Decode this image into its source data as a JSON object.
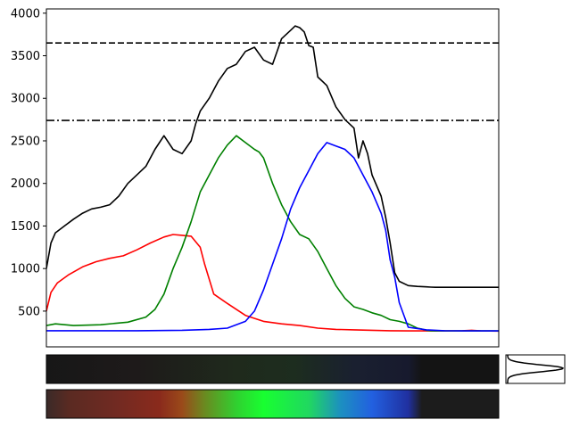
{
  "chart_data": {
    "type": "line",
    "title": "",
    "xlabel": "",
    "ylabel": "",
    "x_range": [
      0,
      500
    ],
    "ylim": [
      80,
      4050
    ],
    "yticks": [
      500,
      1000,
      1500,
      2000,
      2500,
      3000,
      3500,
      4000
    ],
    "ytick_labels": [
      "500",
      "1000",
      "1500",
      "2000",
      "2500",
      "3000",
      "3500",
      "4000"
    ],
    "grid": false,
    "show_x_ticks": false,
    "hlines": [
      {
        "y": 3650,
        "style": "dashed",
        "color": "#000000"
      },
      {
        "y": 2740,
        "style": "dashdot",
        "color": "#000000"
      }
    ],
    "series": [
      {
        "color": "#ff0000",
        "x": [
          0,
          5,
          12,
          25,
          40,
          55,
          70,
          85,
          100,
          115,
          130,
          140,
          150,
          160,
          170,
          175,
          185,
          200,
          220,
          240,
          260,
          280,
          300,
          320,
          340,
          360,
          380,
          400,
          420,
          440,
          460,
          470,
          480,
          500
        ],
        "y": [
          500,
          720,
          830,
          930,
          1020,
          1080,
          1120,
          1150,
          1220,
          1300,
          1370,
          1400,
          1390,
          1380,
          1250,
          1050,
          700,
          590,
          450,
          380,
          350,
          330,
          300,
          285,
          280,
          275,
          270,
          268,
          268,
          268,
          270,
          275,
          268,
          265
        ]
      },
      {
        "color": "#008000",
        "x": [
          0,
          10,
          30,
          60,
          90,
          110,
          120,
          130,
          140,
          150,
          160,
          170,
          180,
          190,
          200,
          210,
          220,
          230,
          235,
          240,
          250,
          260,
          270,
          280,
          290,
          300,
          310,
          320,
          330,
          340,
          350,
          360,
          370,
          380,
          390,
          400,
          410,
          415,
          420,
          425,
          430,
          440,
          460,
          480,
          500
        ],
        "y": [
          330,
          350,
          330,
          340,
          370,
          430,
          520,
          700,
          1000,
          1250,
          1550,
          1900,
          2100,
          2300,
          2450,
          2560,
          2480,
          2400,
          2370,
          2300,
          2000,
          1750,
          1550,
          1400,
          1350,
          1200,
          1000,
          800,
          650,
          550,
          520,
          480,
          450,
          400,
          380,
          350,
          300,
          290,
          275,
          270,
          268,
          268,
          268,
          268,
          268
        ]
      },
      {
        "color": "#0000ff",
        "x": [
          0,
          50,
          100,
          150,
          180,
          200,
          220,
          230,
          240,
          250,
          260,
          270,
          280,
          290,
          300,
          310,
          320,
          330,
          340,
          350,
          360,
          370,
          375,
          380,
          385,
          390,
          400,
          420,
          440,
          460,
          480,
          500
        ],
        "y": [
          270,
          270,
          270,
          275,
          285,
          300,
          380,
          500,
          750,
          1050,
          1350,
          1700,
          1950,
          2150,
          2350,
          2480,
          2440,
          2400,
          2300,
          2100,
          1900,
          1650,
          1450,
          1100,
          900,
          600,
          310,
          280,
          270,
          268,
          268,
          268
        ]
      },
      {
        "color": "#000000",
        "x": [
          0,
          5,
          10,
          20,
          30,
          40,
          50,
          60,
          70,
          80,
          90,
          100,
          110,
          120,
          130,
          140,
          150,
          160,
          165,
          170,
          180,
          190,
          200,
          210,
          220,
          230,
          240,
          250,
          260,
          270,
          275,
          280,
          285,
          290,
          295,
          300,
          305,
          310,
          320,
          330,
          340,
          345,
          350,
          355,
          360,
          370,
          375,
          380,
          385,
          390,
          400,
          410,
          420,
          425,
          430,
          432,
          435,
          440,
          450,
          460,
          470,
          480,
          500
        ],
        "y": [
          1000,
          1300,
          1420,
          1500,
          1580,
          1650,
          1700,
          1720,
          1750,
          1850,
          2000,
          2100,
          2200,
          2400,
          2560,
          2400,
          2350,
          2500,
          2700,
          2850,
          3000,
          3200,
          3350,
          3400,
          3550,
          3600,
          3450,
          3400,
          3700,
          3800,
          3850,
          3830,
          3780,
          3620,
          3600,
          3250,
          3200,
          3150,
          2900,
          2750,
          2650,
          2300,
          2500,
          2350,
          2100,
          1850,
          1600,
          1300,
          950,
          850,
          800,
          790,
          785,
          782,
          780,
          780,
          780,
          780,
          780,
          780,
          780,
          780,
          780
        ]
      }
    ]
  },
  "strips": {
    "observed": {
      "stops": [
        {
          "at": 0.0,
          "color": "#171717"
        },
        {
          "at": 0.2,
          "color": "#1e1a1a"
        },
        {
          "at": 0.42,
          "color": "#1f2a1c"
        },
        {
          "at": 0.55,
          "color": "#1d2d1f"
        },
        {
          "at": 0.68,
          "color": "#1a2030"
        },
        {
          "at": 0.8,
          "color": "#171a2e"
        },
        {
          "at": 0.83,
          "color": "#141414"
        },
        {
          "at": 1.0,
          "color": "#141414"
        }
      ]
    },
    "reconstructed": {
      "stops": [
        {
          "at": 0.0,
          "color": "#3a2a28"
        },
        {
          "at": 0.05,
          "color": "#5a2a22"
        },
        {
          "at": 0.15,
          "color": "#702a22"
        },
        {
          "at": 0.25,
          "color": "#8a2a1c"
        },
        {
          "at": 0.3,
          "color": "#9a4a1a"
        },
        {
          "at": 0.35,
          "color": "#6a8a20"
        },
        {
          "at": 0.42,
          "color": "#30d030"
        },
        {
          "at": 0.48,
          "color": "#18ff30"
        },
        {
          "at": 0.58,
          "color": "#20d860"
        },
        {
          "at": 0.65,
          "color": "#1c90c0"
        },
        {
          "at": 0.72,
          "color": "#2260e0"
        },
        {
          "at": 0.8,
          "color": "#2030a0"
        },
        {
          "at": 0.83,
          "color": "#1c1c1c"
        },
        {
          "at": 1.0,
          "color": "#1c1c1c"
        }
      ]
    }
  },
  "profile": {
    "color": "#000000",
    "peak_fraction": 0.47,
    "width_fraction": 0.12
  }
}
